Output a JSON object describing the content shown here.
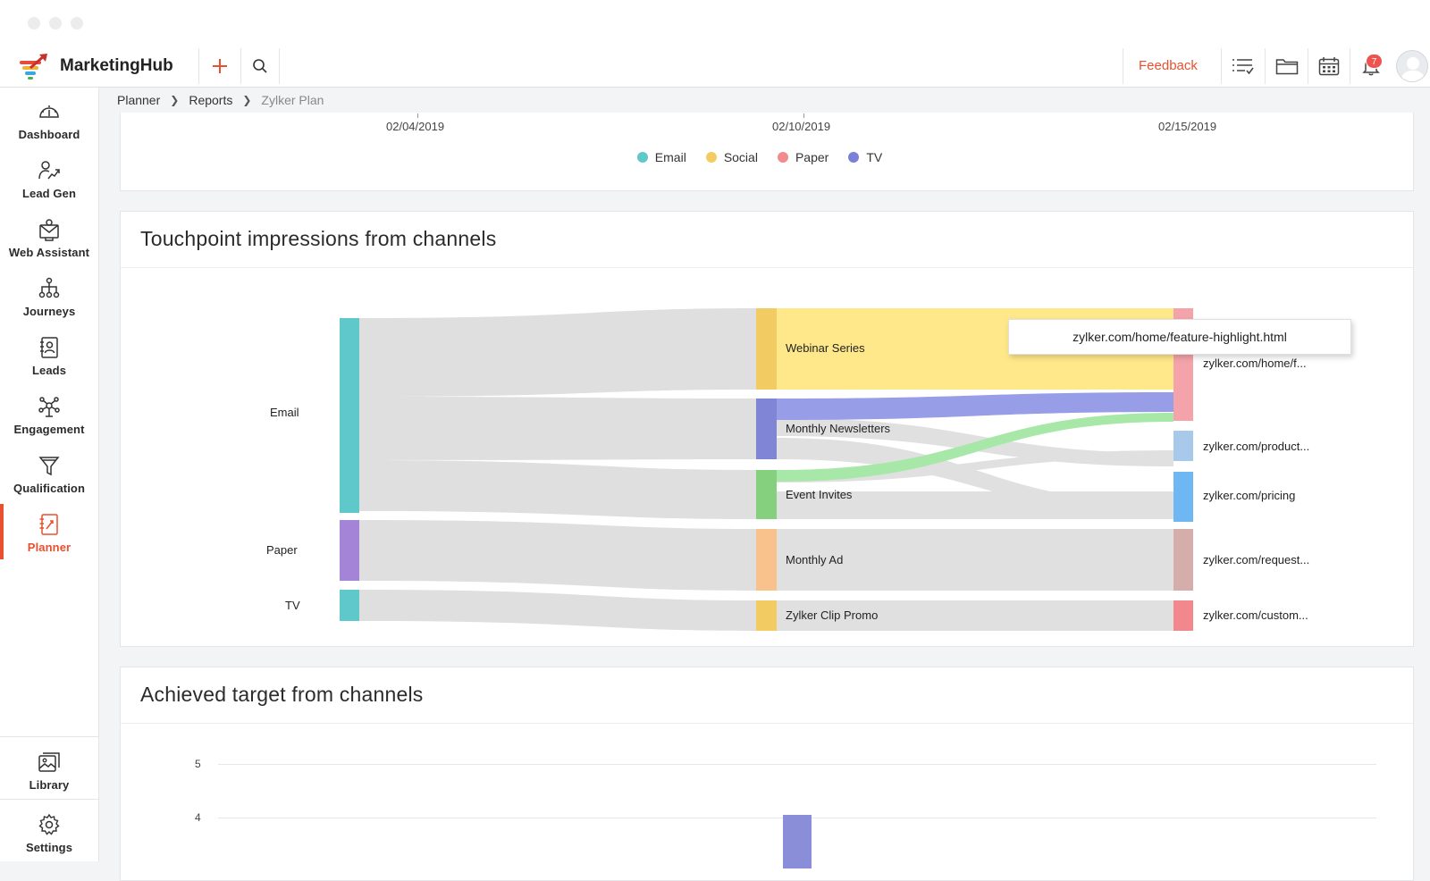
{
  "app": {
    "name": "MarketingHub",
    "feedback_label": "Feedback",
    "notification_count": "7",
    "accent_color": "#e8502f"
  },
  "sidebar": {
    "items": [
      {
        "label": "Dashboard",
        "icon": "dashboard-icon"
      },
      {
        "label": "Lead Gen",
        "icon": "lead-gen-icon"
      },
      {
        "label": "Web Assistant",
        "icon": "web-assistant-icon"
      },
      {
        "label": "Journeys",
        "icon": "journeys-icon"
      },
      {
        "label": "Leads",
        "icon": "leads-icon"
      },
      {
        "label": "Engagement",
        "icon": "engagement-icon"
      },
      {
        "label": "Qualification",
        "icon": "qualification-icon"
      },
      {
        "label": "Planner",
        "icon": "planner-icon",
        "active": true
      }
    ],
    "bottom": [
      {
        "label": "Library",
        "icon": "library-icon"
      },
      {
        "label": "Settings",
        "icon": "settings-icon"
      }
    ]
  },
  "breadcrumb": {
    "items": [
      "Planner",
      "Reports"
    ],
    "current": "Zylker Plan"
  },
  "timeline_card": {
    "dates": [
      "02/04/2019",
      "02/10/2019",
      "02/15/2019"
    ],
    "legend": [
      {
        "label": "Email",
        "color": "#5ec8cb"
      },
      {
        "label": "Social",
        "color": "#f2cc62"
      },
      {
        "label": "Paper",
        "color": "#f28b8e"
      },
      {
        "label": "TV",
        "color": "#7b7fd5"
      }
    ]
  },
  "sankey_card": {
    "title": "Touchpoint impressions from channels",
    "tooltip": "zylker.com/home/feature-highlight.html",
    "sources": [
      "Email",
      "Paper",
      "TV"
    ],
    "campaigns": [
      "Webinar Series",
      "Monthly Newsletters",
      "Event Invites",
      "Monthly Ad",
      "Zylker Clip Promo"
    ],
    "pages": [
      "zylker.com/home/f...",
      "zylker.com/product...",
      "zylker.com/pricing",
      "zylker.com/request...",
      "zylker.com/custom..."
    ]
  },
  "chart_data": {
    "type": "bar",
    "title": "Achieved target from channels",
    "yticks": [
      "5",
      "4"
    ],
    "ylim": [
      0,
      5
    ],
    "values": [
      4
    ]
  }
}
